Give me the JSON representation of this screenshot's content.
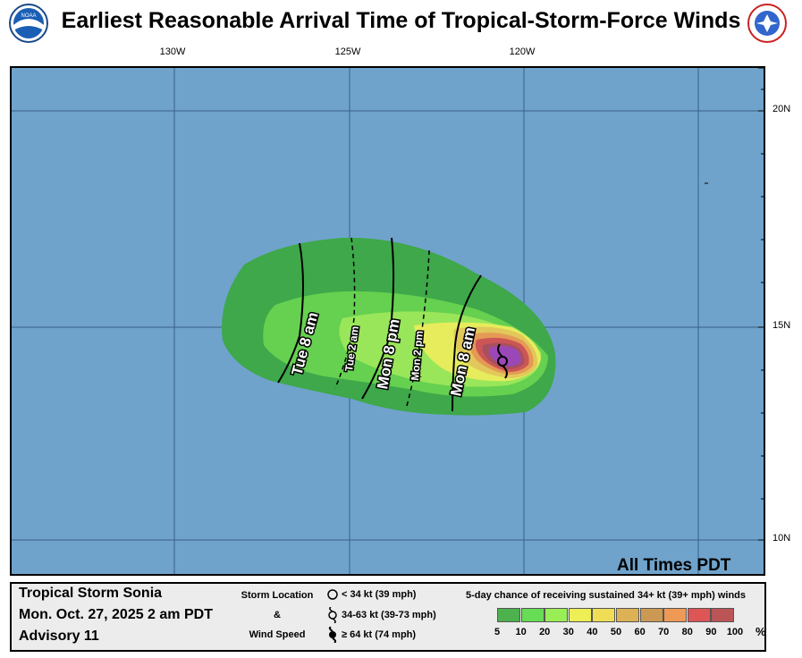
{
  "title": "Earliest Reasonable Arrival Time of Tropical-Storm-Force Winds",
  "logos": {
    "left": "NOAA",
    "right": "NATIONAL WEATHER SERVICE"
  },
  "longitudes": [
    "130W",
    "125W",
    "120W"
  ],
  "latitudes": [
    "20N",
    "15N",
    "10N"
  ],
  "time_labels": [
    "Tue 8 am",
    "Tue 2 am",
    "Mon 8 pm",
    "Mon 2 pm",
    "Mon 8 am"
  ],
  "times_zone": "All Times PDT",
  "storm": {
    "name": "Tropical Storm Sonia",
    "date": "Mon. Oct. 27, 2025  2 am PDT",
    "advisory": "Advisory 11"
  },
  "key": {
    "storm_location": "Storm Location",
    "amp": "&",
    "wind_speed": "Wind Speed",
    "items": [
      "< 34 kt (39 mph)",
      "34-63 kt (39-73 mph)",
      "≥ 64 kt (74 mph)"
    ]
  },
  "probability": {
    "title": "5-day chance of receiving sustained 34+ kt (39+ mph) winds",
    "ticks": [
      "5",
      "10",
      "20",
      "30",
      "40",
      "50",
      "60",
      "70",
      "80",
      "90",
      "100"
    ],
    "unit": "%",
    "colors": [
      "#4db24d",
      "#66dd55",
      "#99ee55",
      "#eeee55",
      "#eedd55",
      "#ddb155",
      "#cc9955",
      "#ee9955",
      "#dd5555",
      "#bb5555",
      "#b055cc"
    ]
  }
}
